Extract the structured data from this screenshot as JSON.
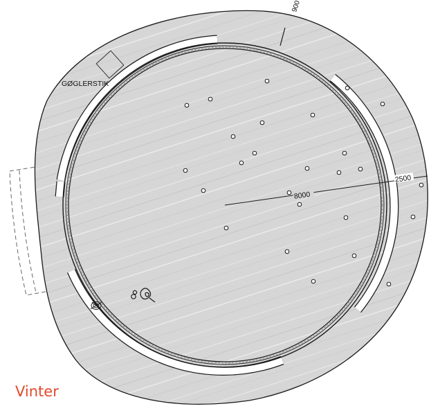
{
  "street_label": "GØGLERSTIK",
  "radius_label": "8000",
  "outer_label": "2500",
  "top_label": "900",
  "season_label": "Vinter",
  "colors": {
    "season_text": "#e34a2b",
    "paving": "#d4d4d4",
    "line": "#1a1a1a"
  },
  "icons": [
    "sculpture-symbol-icon",
    "drain-icon"
  ]
}
